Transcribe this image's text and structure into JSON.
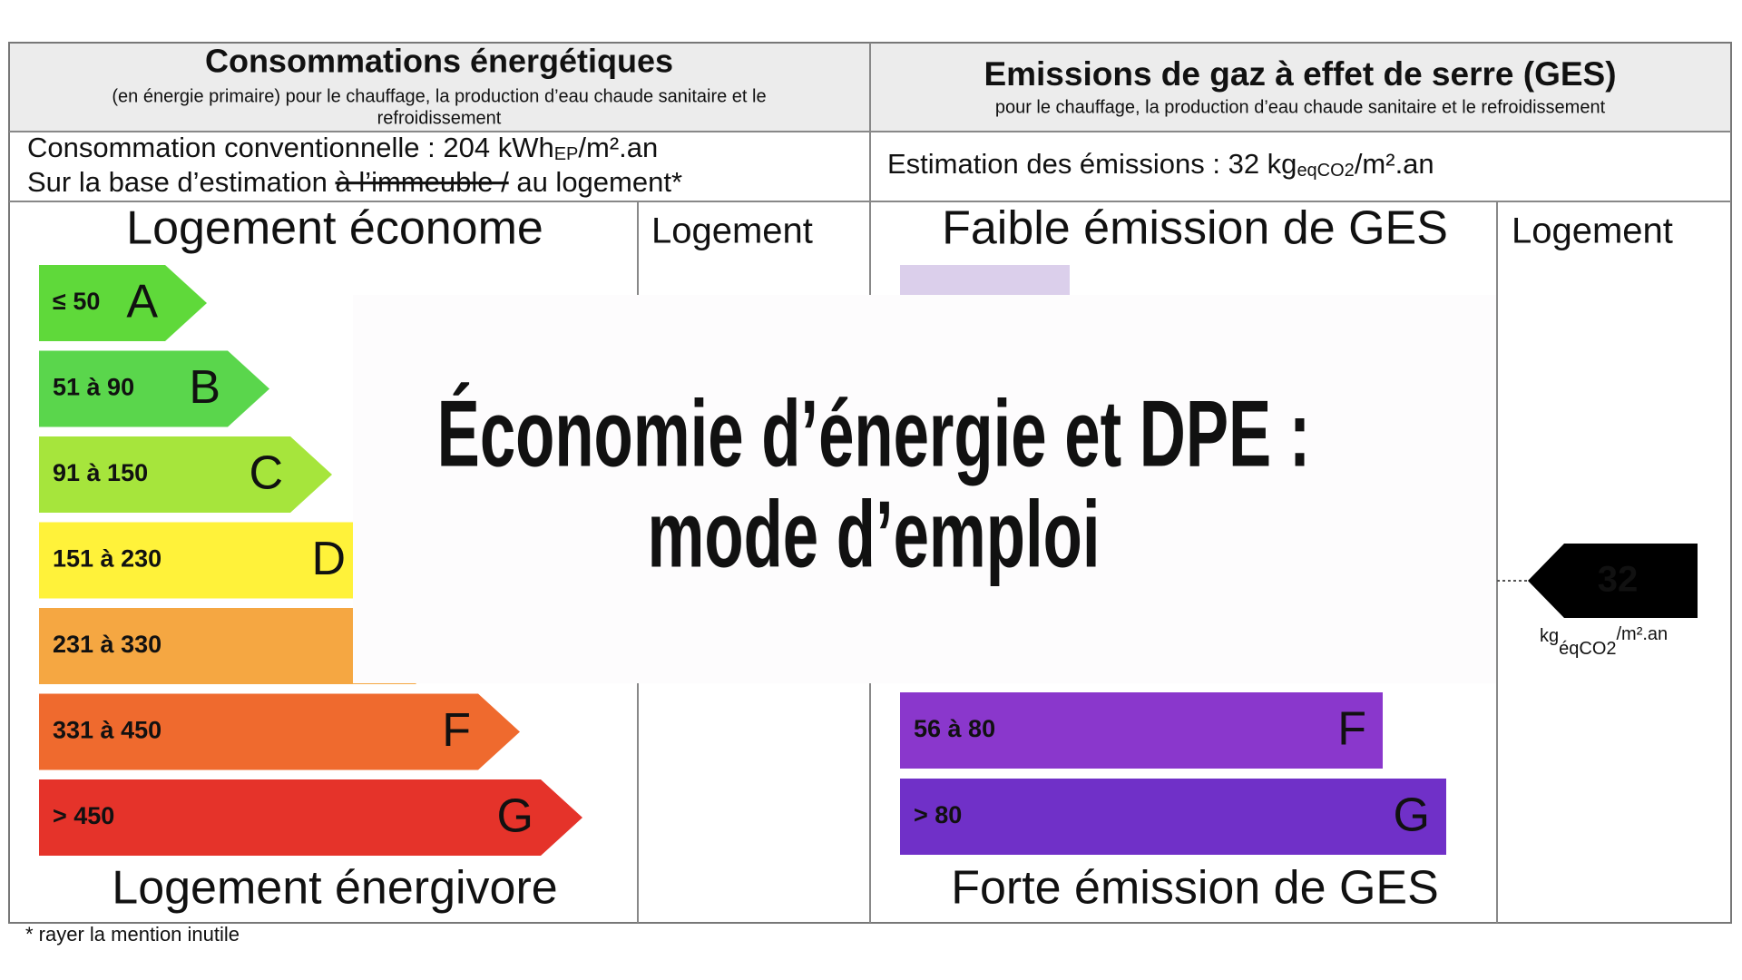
{
  "energy": {
    "header_title": "Consommations énergétiques",
    "header_subtitle": [
      "(en énergie primaire) pour le chauffage, la production d’eau chaude sanitaire et le",
      "refroidissement"
    ],
    "consumption_label": "Consommation conventionnelle : 204 kWh",
    "consumption_sub": "EP",
    "consumption_unit": "/m².an",
    "basis_prefix": "Sur la base d’estimation ",
    "basis_struck": "à l’immeuble /",
    "basis_suffix": " au logement*",
    "top_label": "Logement économe",
    "column_label": "Logement",
    "bottom_label": "Logement énergivore",
    "classes": [
      {
        "range": "≤ 50",
        "letter": "A",
        "color": "#5fd93a"
      },
      {
        "range": "51 à 90",
        "letter": "B",
        "color": "#5ad64c"
      },
      {
        "range": "91 à 150",
        "letter": "C",
        "color": "#a6e53c"
      },
      {
        "range": "151 à 230",
        "letter": "D",
        "color": "#fff23a"
      },
      {
        "range": "231 à 330",
        "color": "#f5a742"
      },
      {
        "range": "331 à 450",
        "letter": "F",
        "color": "#ef6a2e"
      },
      {
        "range": "> 450",
        "letter": "G",
        "color": "#e5332a"
      }
    ]
  },
  "emissions": {
    "header_title": "Emissions de gaz à effet de serre (GES)",
    "header_subtitle": "pour le chauffage, la production d’eau chaude sanitaire et le refroidissement",
    "estimate_label": "Estimation des émissions : 32 kg",
    "estimate_sub": "eqCO2",
    "estimate_unit": "/m².an",
    "top_label": "Faible émission de GES",
    "column_label": "Logement",
    "bottom_label": "Forte émission de GES",
    "classes": [
      {
        "color": "#dbcfeb"
      },
      {
        "range": "56 à 80",
        "letter": "F",
        "color": "#8a37cc"
      },
      {
        "range": "> 80",
        "letter": "G",
        "color": "#7030c8"
      }
    ],
    "marker": {
      "value": "32",
      "unit": "kg",
      "unit_sub": "éqCO2",
      "unit_suffix": "/m².an"
    }
  },
  "footnote": "* rayer la mention inutile",
  "overlay_title": [
    "Économie d’énergie et DPE :",
    "mode d’emploi"
  ]
}
